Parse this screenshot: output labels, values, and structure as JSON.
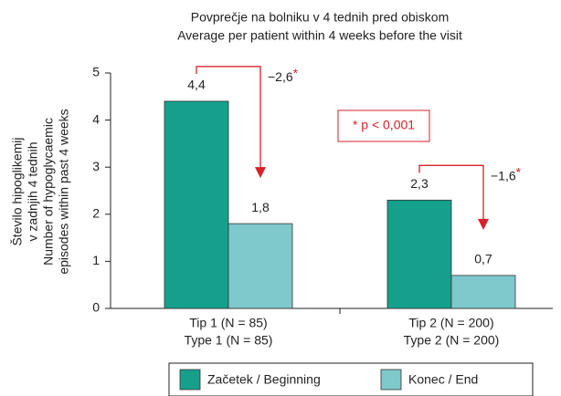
{
  "chart_data": {
    "type": "bar",
    "title": [
      "Povprečje na bolniku v 4 tednih pred obiskom",
      "Average per patient within 4 weeks before the visit"
    ],
    "ylabel": [
      "Število hipoglikemij",
      "v zadnjih 4 tednih",
      "Number of hypoglycaemic",
      "episodes within past 4 weeks"
    ],
    "categories": [
      [
        "Tip 1 (N = 85)",
        "Type 1 (N = 85)"
      ],
      [
        "Tip 2 (N = 200)",
        "Type 2 (N = 200)"
      ]
    ],
    "series": [
      {
        "name": "Začetek / Beginning",
        "color": "#15a08c",
        "values": [
          4.4,
          2.3
        ],
        "value_labels": [
          "4,4",
          "2,3"
        ]
      },
      {
        "name": "Konec / End",
        "color": "#7fc8cc",
        "values": [
          1.8,
          0.7
        ],
        "value_labels": [
          "1,8",
          "0,7"
        ]
      }
    ],
    "annotations": [
      {
        "text": "−2,6",
        "star": "*"
      },
      {
        "text": "−1,6",
        "star": "*"
      }
    ],
    "note": "* p < 0,001",
    "ylim": [
      0,
      5
    ],
    "yticks": [
      0,
      1,
      2,
      3,
      4,
      5
    ],
    "grid": false,
    "legend": "bottom"
  }
}
